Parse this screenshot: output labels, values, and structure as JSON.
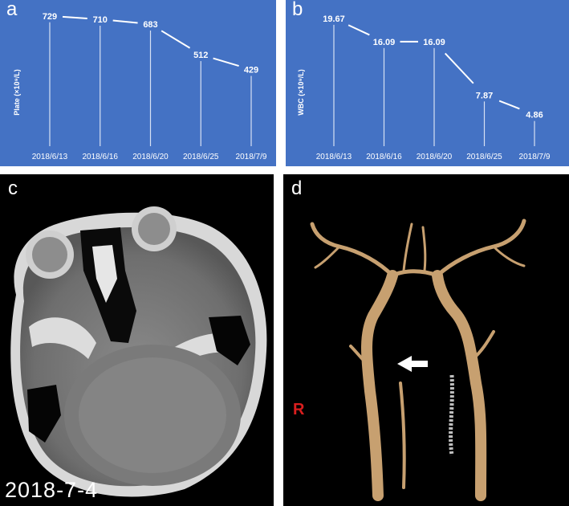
{
  "panels": {
    "a": {
      "letter": "a"
    },
    "b": {
      "letter": "b"
    },
    "c": {
      "letter": "c",
      "date": "2018-7-4"
    },
    "d": {
      "letter": "d",
      "marker": "R"
    }
  },
  "chart_data": [
    {
      "type": "line",
      "panel": "a",
      "ylabel": "Plate (×10⁹/L)",
      "categories": [
        "2018/6/13",
        "2018/6/16",
        "2018/6/20",
        "2018/6/25",
        "2018/7/9"
      ],
      "values": [
        729,
        710,
        683,
        512,
        429
      ],
      "data_labels": [
        "729",
        "710",
        "683",
        "512",
        "429"
      ],
      "ylim": [
        0,
        800
      ],
      "background": "#4472c4",
      "line_color": "#ffffff"
    },
    {
      "type": "line",
      "panel": "b",
      "ylabel": "WBC (×10⁹/L)",
      "categories": [
        "2018/6/13",
        "2018/6/16",
        "2018/6/20",
        "2018/6/25",
        "2018/7/9"
      ],
      "values": [
        19.67,
        16.09,
        16.09,
        7.87,
        4.86
      ],
      "data_labels": [
        "19.67",
        "16.09",
        "16.09",
        "7.87",
        "4.86"
      ],
      "ylim": [
        0,
        22
      ],
      "background": "#4472c4",
      "line_color": "#ffffff"
    }
  ]
}
